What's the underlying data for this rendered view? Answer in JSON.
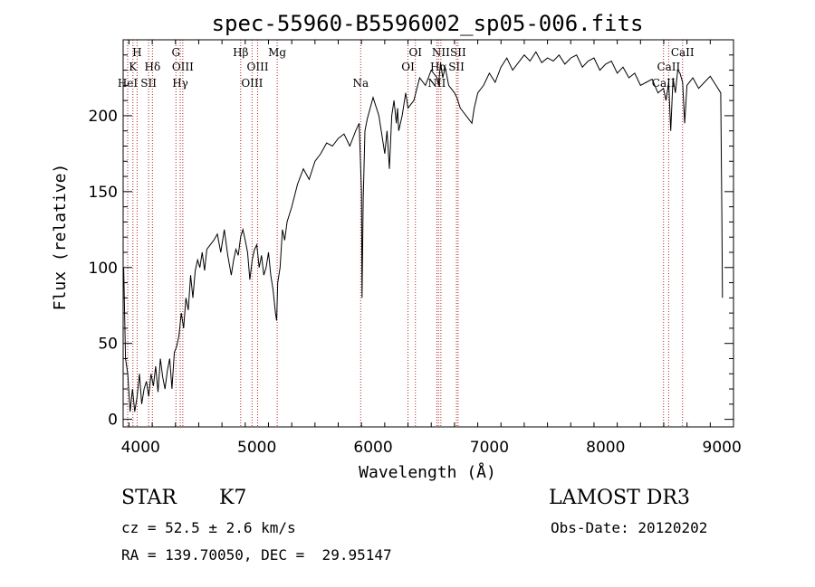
{
  "chart_data": {
    "type": "line",
    "title": "spec-55960-B5596002_sp05-006.fits",
    "xlabel": "Wavelength (Å)",
    "ylabel": "Flux (relative)",
    "xlim": [
      3850,
      9100
    ],
    "ylim": [
      -5,
      250
    ],
    "x_ticks": [
      4000,
      5000,
      6000,
      7000,
      8000,
      9000
    ],
    "y_ticks": [
      0,
      50,
      100,
      150,
      200
    ],
    "grid": false,
    "line_color": "#000000",
    "marker_color": "#b22222",
    "spectrum": {
      "x": [
        3855,
        3870,
        3890,
        3910,
        3930,
        3950,
        3970,
        3990,
        4010,
        4030,
        4050,
        4070,
        4090,
        4110,
        4130,
        4150,
        4170,
        4190,
        4210,
        4230,
        4250,
        4270,
        4290,
        4310,
        4330,
        4350,
        4370,
        4390,
        4410,
        4430,
        4450,
        4470,
        4490,
        4510,
        4530,
        4550,
        4570,
        4600,
        4630,
        4660,
        4690,
        4720,
        4750,
        4780,
        4800,
        4820,
        4840,
        4860,
        4880,
        4900,
        4920,
        4940,
        4960,
        4980,
        5000,
        5020,
        5040,
        5060,
        5080,
        5100,
        5120,
        5140,
        5160,
        5170,
        5180,
        5200,
        5220,
        5240,
        5260,
        5280,
        5300,
        5350,
        5400,
        5450,
        5500,
        5550,
        5600,
        5650,
        5700,
        5750,
        5800,
        5850,
        5880,
        5900,
        5905,
        5915,
        5930,
        5950,
        6000,
        6050,
        6080,
        6100,
        6120,
        6140,
        6160,
        6180,
        6200,
        6210,
        6220,
        6250,
        6280,
        6300,
        6350,
        6400,
        6450,
        6500,
        6550,
        6563,
        6580,
        6600,
        6620,
        6650,
        6700,
        6720,
        6750,
        6800,
        6850,
        6870,
        6900,
        6950,
        7000,
        7050,
        7100,
        7150,
        7200,
        7250,
        7300,
        7350,
        7400,
        7450,
        7500,
        7550,
        7600,
        7650,
        7700,
        7750,
        7800,
        7850,
        7900,
        7950,
        8000,
        8050,
        8100,
        8150,
        8200,
        8250,
        8300,
        8350,
        8400,
        8450,
        8498,
        8520,
        8542,
        8560,
        8580,
        8600,
        8620,
        8640,
        8662,
        8680,
        8700,
        8750,
        8800,
        8850,
        8900,
        8950,
        8990,
        9000,
        9005
      ],
      "y": [
        100,
        40,
        30,
        5,
        20,
        5,
        15,
        30,
        10,
        20,
        25,
        15,
        30,
        22,
        35,
        18,
        40,
        28,
        20,
        32,
        40,
        20,
        44,
        48,
        55,
        70,
        60,
        80,
        72,
        95,
        80,
        98,
        105,
        100,
        110,
        98,
        112,
        115,
        118,
        122,
        110,
        125,
        108,
        95,
        105,
        112,
        108,
        120,
        125,
        118,
        110,
        92,
        105,
        112,
        115,
        100,
        108,
        95,
        100,
        110,
        95,
        85,
        70,
        65,
        90,
        100,
        125,
        118,
        130,
        135,
        140,
        155,
        165,
        158,
        170,
        175,
        182,
        180,
        185,
        188,
        180,
        190,
        195,
        150,
        80,
        145,
        190,
        198,
        212,
        200,
        185,
        175,
        190,
        165,
        200,
        210,
        195,
        205,
        190,
        200,
        215,
        205,
        210,
        225,
        220,
        230,
        225,
        220,
        235,
        225,
        232,
        220,
        215,
        212,
        205,
        200,
        195,
        205,
        215,
        220,
        228,
        222,
        232,
        238,
        230,
        235,
        240,
        236,
        242,
        235,
        238,
        236,
        240,
        234,
        238,
        240,
        232,
        236,
        238,
        230,
        234,
        236,
        228,
        232,
        225,
        228,
        220,
        222,
        224,
        215,
        218,
        210,
        222,
        190,
        225,
        215,
        230,
        228,
        222,
        195,
        220,
        225,
        218,
        222,
        226,
        220,
        215,
        130,
        80
      ]
    },
    "lines": [
      {
        "label": "H",
        "x": 3970,
        "row": 0
      },
      {
        "label": "K",
        "x": 3934,
        "row": 1
      },
      {
        "label": "HeI",
        "x": 3889,
        "row": 2
      },
      {
        "label": "SII",
        "x": 4069,
        "row": 2
      },
      {
        "label": "Hδ",
        "x": 4102,
        "row": 1
      },
      {
        "label": "G",
        "x": 4304,
        "row": 0
      },
      {
        "label": "OIII",
        "x": 4363,
        "row": 1
      },
      {
        "label": "Hγ",
        "x": 4341,
        "row": 2
      },
      {
        "label": "Hβ",
        "x": 4861,
        "row": 0
      },
      {
        "label": "OIII",
        "x": 5007,
        "row": 1
      },
      {
        "label": "OIII",
        "x": 4959,
        "row": 2
      },
      {
        "label": "Mg",
        "x": 5175,
        "row": 0
      },
      {
        "label": "Na",
        "x": 5893,
        "row": 2
      },
      {
        "label": "OI",
        "x": 6364,
        "row": 0
      },
      {
        "label": "OI",
        "x": 6300,
        "row": 1
      },
      {
        "label": "NII",
        "x": 6583,
        "row": 0
      },
      {
        "label": "SII",
        "x": 6731,
        "row": 0
      },
      {
        "label": "Hα",
        "x": 6563,
        "row": 1
      },
      {
        "label": "SII",
        "x": 6717,
        "row": 1
      },
      {
        "label": "NII",
        "x": 6548,
        "row": 2
      },
      {
        "label": "CaII",
        "x": 8662,
        "row": 0
      },
      {
        "label": "CaII",
        "x": 8542,
        "row": 1
      },
      {
        "label": "CaII",
        "x": 8498,
        "row": 2
      }
    ]
  },
  "info": {
    "object_class": "STAR",
    "subclass": "K7",
    "survey": "LAMOST DR3",
    "cz": "cz = 52.5 ± 2.6 km/s",
    "obs_date": "Obs-Date: 20120202",
    "coords": "RA = 139.70050, DEC =  29.95147"
  }
}
